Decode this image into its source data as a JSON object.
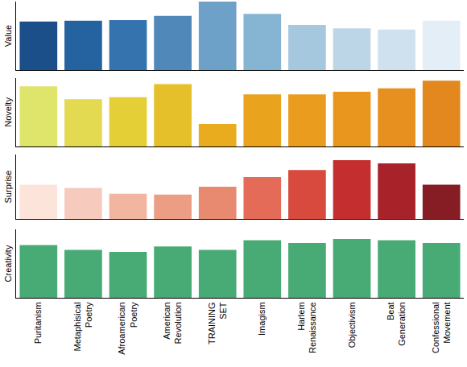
{
  "chart_data": [
    {
      "type": "bar",
      "ylabel": "Value",
      "categories": [
        "Puritanism",
        "Metaphisical Poetry",
        "Afroamerican Poetry",
        "American Revolution",
        "TRAINING SET",
        "Imagism",
        "Harlem Renaissance",
        "Objectivism",
        "Beat Generation",
        "Confessional Movement"
      ],
      "values": [
        0.71,
        0.72,
        0.73,
        0.79,
        1.0,
        0.82,
        0.66,
        0.61,
        0.59,
        0.72
      ],
      "colors": [
        "#1b4f8a",
        "#2462a0",
        "#3473ad",
        "#4f88b9",
        "#6ea1c8",
        "#86b4d3",
        "#a6c8df",
        "#bcd6e8",
        "#cfe1ef",
        "#e4eef7"
      ],
      "ylim": [
        0,
        1
      ],
      "yticks": [],
      "tick_labels": false
    },
    {
      "type": "bar",
      "ylabel": "Novelty",
      "categories": [
        "Puritanism",
        "Metaphisical Poetry",
        "Afroamerican Poetry",
        "American Revolution",
        "TRAINING SET",
        "Imagism",
        "Harlem Renaissance",
        "Objectivism",
        "Beat Generation",
        "Confessional Movement"
      ],
      "values": [
        0.88,
        0.69,
        0.72,
        0.91,
        0.33,
        0.76,
        0.76,
        0.8,
        0.85,
        0.96
      ],
      "colors": [
        "#dfe56b",
        "#e3da52",
        "#e5cf36",
        "#e6c02a",
        "#e9ac1f",
        "#e9a31c",
        "#e99c1d",
        "#e8961e",
        "#e78f1f",
        "#e3881e"
      ],
      "ylim": [
        0,
        1
      ],
      "yticks": [],
      "tick_labels": false
    },
    {
      "type": "bar",
      "ylabel": "Surprise",
      "categories": [
        "Puritanism",
        "Metaphisical Poetry",
        "Afroamerican Poetry",
        "American Revolution",
        "TRAINING SET",
        "Imagism",
        "Harlem Renaissance",
        "Objectivism",
        "Beat Generation",
        "Confessional Movement"
      ],
      "values": [
        0.53,
        0.48,
        0.39,
        0.38,
        0.5,
        0.65,
        0.76,
        0.91,
        0.86,
        0.53
      ],
      "colors": [
        "#fde4da",
        "#f6cbbd",
        "#f2b5a0",
        "#eb9e84",
        "#e88a6f",
        "#e36b57",
        "#d84a3d",
        "#c52e2f",
        "#a72329",
        "#861c24"
      ],
      "ylim": [
        0,
        1
      ],
      "yticks": [],
      "tick_labels": false
    },
    {
      "type": "bar",
      "ylabel": "Creativity",
      "categories": [
        "Puritanism",
        "Metaphisical Poetry",
        "Afroamerican Poetry",
        "American Revolution",
        "TRAINING SET",
        "Imagism",
        "Harlem Renaissance",
        "Objectivism",
        "Beat Generation",
        "Confessional Movement"
      ],
      "values": [
        0.77,
        0.7,
        0.67,
        0.75,
        0.7,
        0.84,
        0.8,
        0.86,
        0.84,
        0.8
      ],
      "color": "#48aa74",
      "ylim": [
        0,
        1
      ],
      "yticks": [],
      "tick_labels": "x"
    }
  ]
}
